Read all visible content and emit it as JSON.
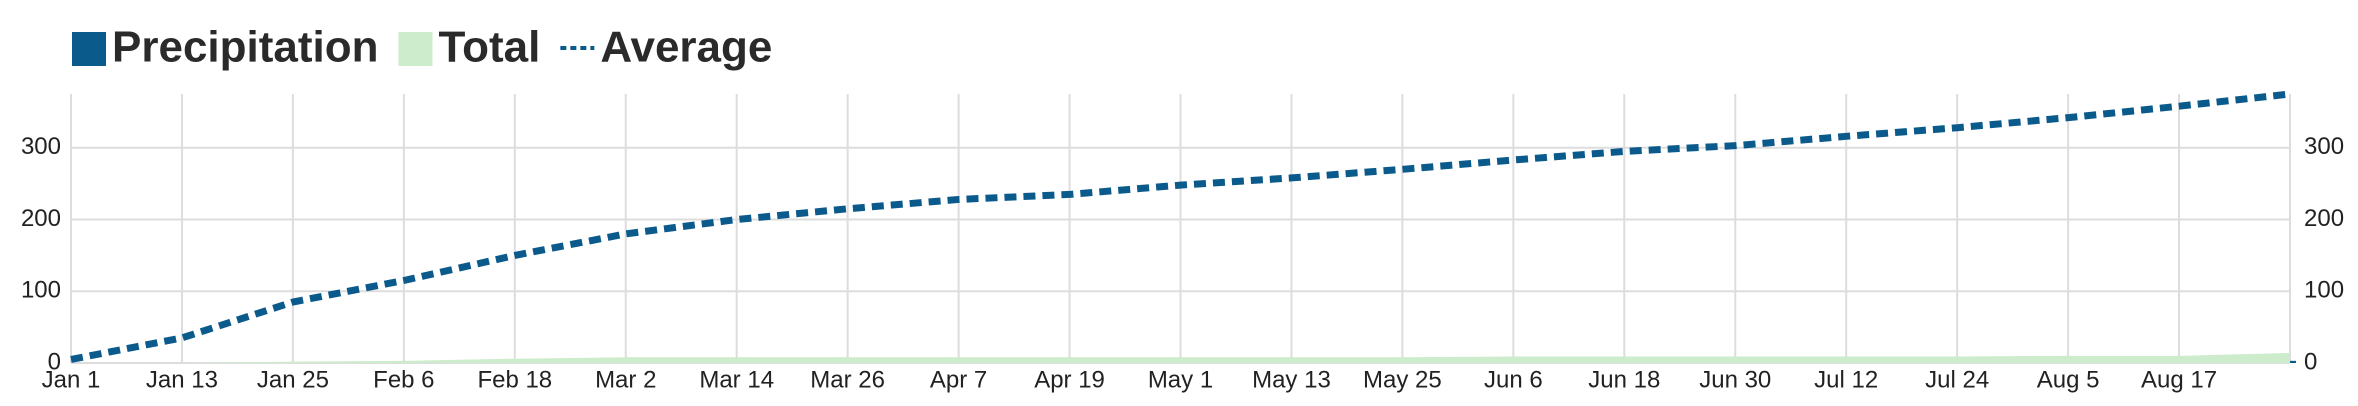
{
  "chart_data": {
    "type": "combo",
    "categories": [
      "Jan 1",
      "Jan 13",
      "Jan 25",
      "Feb 6",
      "Feb 18",
      "Mar 2",
      "Mar 14",
      "Mar 26",
      "Apr 7",
      "Apr 19",
      "May 1",
      "May 13",
      "May 25",
      "Jun 6",
      "Jun 18",
      "Jun 30",
      "Jul 12",
      "Jul 24",
      "Aug 5",
      "Aug 17",
      null
    ],
    "series": [
      {
        "name": "Precipitation",
        "color": "#0b5a8c",
        "kind": "bar",
        "values": [
          0,
          0,
          1,
          0,
          0,
          1,
          0,
          0,
          0,
          0,
          0,
          0,
          0,
          0,
          0,
          0,
          0,
          1,
          0,
          0,
          3
        ]
      },
      {
        "name": "Total",
        "color": "#cdeccb",
        "kind": "area",
        "values": [
          0,
          0,
          2,
          3,
          6,
          8,
          8,
          8,
          8,
          8,
          8,
          8,
          8,
          9,
          9,
          9,
          9,
          9,
          10,
          10,
          14
        ]
      },
      {
        "name": "Average",
        "color": "#0b5a8c",
        "kind": "dashed-line",
        "axis": "y2",
        "values": [
          5,
          35,
          85,
          115,
          150,
          180,
          200,
          215,
          228,
          235,
          248,
          258,
          270,
          283,
          295,
          303,
          316,
          328,
          342,
          358,
          375
        ]
      }
    ],
    "ylim": [
      0,
      375
    ],
    "yticks": [
      0,
      100,
      200,
      300
    ],
    "y2lim": [
      0,
      375
    ],
    "y2ticks": [
      0,
      100,
      200,
      300
    ],
    "grid": true,
    "legend": "top-left"
  }
}
